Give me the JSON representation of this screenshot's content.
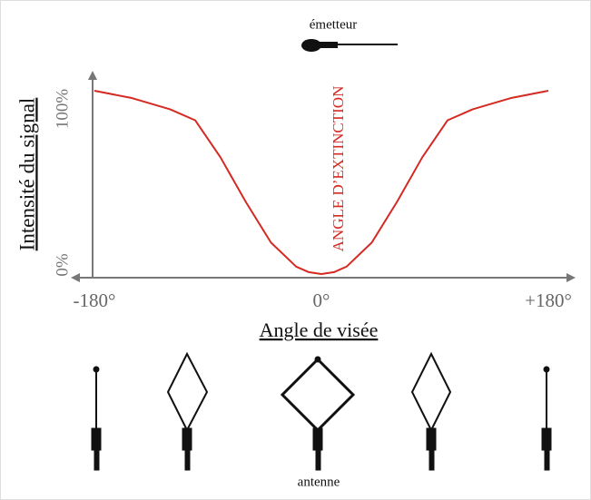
{
  "chart_data": {
    "type": "line",
    "emitter_label": "émetteur",
    "annotation": "ANGLE D’EXTINCTION",
    "y_label": "Intensité du signal",
    "x_label": "Angle de visée",
    "antenna_label": "antenne",
    "x": [
      -180,
      -150,
      -120,
      -100,
      -80,
      -60,
      -40,
      -20,
      -10,
      0,
      10,
      20,
      40,
      60,
      80,
      100,
      120,
      150,
      180
    ],
    "values": [
      100,
      96,
      90,
      84,
      64,
      40,
      18,
      5,
      2,
      1,
      2,
      5,
      18,
      40,
      64,
      84,
      90,
      96,
      100
    ],
    "color": "#d42a22",
    "xlim": [
      -180,
      180
    ],
    "ylim": [
      0,
      100
    ],
    "xticks": [
      {
        "value": -180,
        "label": "-180°"
      },
      {
        "value": 0,
        "label": "0°"
      },
      {
        "value": 180,
        "label": "+180°"
      }
    ],
    "yticks": [
      {
        "value": 0,
        "label": "0%"
      },
      {
        "value": 100,
        "label": "100%"
      }
    ]
  }
}
